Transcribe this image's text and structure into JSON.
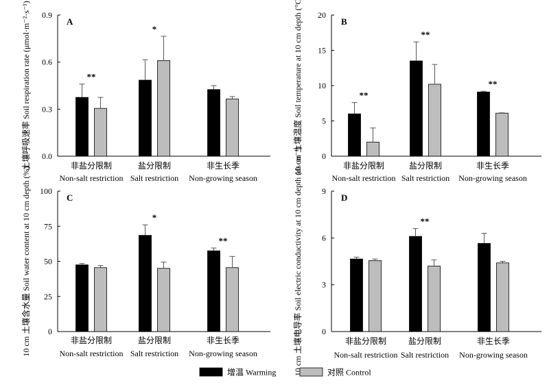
{
  "chart_data": [
    {
      "type": "bar",
      "panel_label": "A",
      "ylabel": "土壤呼吸速率 Soil respiration rate (μmol·m⁻²·s⁻¹)",
      "ylim": [
        0,
        0.9
      ],
      "yticks": [
        "0.0",
        "0.3",
        "0.6",
        "0.9"
      ],
      "ytick_values": [
        0,
        0.3,
        0.6,
        0.9
      ],
      "categories_cn": [
        "非盐分限制",
        "盐分限制",
        "非生长季"
      ],
      "categories_en": [
        "Non-salt restriction",
        "Salt restriction",
        "Non-growing season"
      ],
      "series": [
        {
          "values": [
            0.375,
            0.485,
            0.425
          ],
          "errors": [
            0.085,
            0.13,
            0.025
          ],
          "color": "#000000"
        },
        {
          "values": [
            0.305,
            0.61,
            0.365
          ],
          "errors": [
            0.07,
            0.155,
            0.015
          ],
          "color": "#bdbdbd"
        }
      ],
      "significance": [
        "**",
        "*",
        ""
      ]
    },
    {
      "type": "bar",
      "panel_label": "B",
      "ylabel": "10 cm 土壤温度 Soil temperature at 10 cm depth (°C)",
      "ylim": [
        0,
        20
      ],
      "yticks": [
        "0",
        "5",
        "10",
        "15",
        "20"
      ],
      "ytick_values": [
        0,
        5,
        10,
        15,
        20
      ],
      "categories_cn": [
        "非盐分限制",
        "盐分限制",
        "非生长季"
      ],
      "categories_en": [
        "Non-salt restriction",
        "Salt restriction",
        "Non-growing season"
      ],
      "series": [
        {
          "values": [
            6.0,
            13.5,
            9.1
          ],
          "errors": [
            1.6,
            2.7,
            0.1
          ],
          "color": "#000000"
        },
        {
          "values": [
            2.0,
            10.2,
            6.1
          ],
          "errors": [
            2.0,
            2.8,
            0.05
          ],
          "color": "#bdbdbd"
        }
      ],
      "significance": [
        "**",
        "**",
        "**"
      ]
    },
    {
      "type": "bar",
      "panel_label": "C",
      "ylabel": "10 cm 土壤含水量 Soil water content at 10 cm depth (%)",
      "ylim": [
        0,
        100
      ],
      "yticks": [
        "0",
        "25",
        "50",
        "75",
        "100"
      ],
      "ytick_values": [
        0,
        25,
        50,
        75,
        100
      ],
      "categories_cn": [
        "非盐分限制",
        "盐分限制",
        "非生长季"
      ],
      "categories_en": [
        "Non-salt restriction",
        "Salt restriction",
        "Non-growing season"
      ],
      "series": [
        {
          "values": [
            47.5,
            68.5,
            57.5
          ],
          "errors": [
            1.0,
            7.5,
            2.0
          ],
          "color": "#000000"
        },
        {
          "values": [
            45.5,
            45.0,
            45.5
          ],
          "errors": [
            1.5,
            4.5,
            8.0
          ],
          "color": "#bdbdbd"
        }
      ],
      "significance": [
        "",
        "*",
        "**"
      ]
    },
    {
      "type": "bar",
      "panel_label": "D",
      "ylabel": "10 cm 土壤电导率 Soil electric conductivity at 10 cm depth (ds·m⁻¹)",
      "ylim": [
        0,
        9
      ],
      "yticks": [
        "0",
        "3",
        "6",
        "9"
      ],
      "ytick_values": [
        0,
        3,
        6,
        9
      ],
      "categories_cn": [
        "非盐分限制",
        "盐分限制",
        "非生长季"
      ],
      "categories_en": [
        "Non-salt restriction",
        "Salt restriction",
        "Non-growing season"
      ],
      "series": [
        {
          "values": [
            4.65,
            6.1,
            5.65
          ],
          "errors": [
            0.12,
            0.5,
            0.65
          ],
          "color": "#000000"
        },
        {
          "values": [
            4.55,
            4.2,
            4.4
          ],
          "errors": [
            0.1,
            0.4,
            0.1
          ],
          "color": "#bdbdbd"
        }
      ],
      "significance": [
        "",
        "**",
        ""
      ]
    }
  ],
  "legend": [
    {
      "label": "增温 Warming",
      "color": "#000000"
    },
    {
      "label": "对照  Control",
      "color": "#bdbdbd"
    }
  ]
}
